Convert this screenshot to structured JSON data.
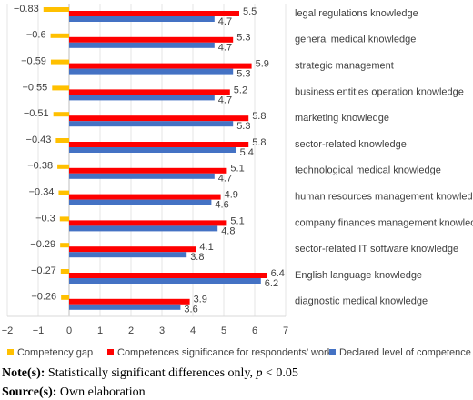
{
  "chart_data": {
    "type": "hbar",
    "categories": [
      "legal regulations knowledge",
      "general medical knowledge",
      "strategic management",
      "business entities operation knowledge",
      "marketing knowledge",
      "sector-related knowledge",
      "technological medical knowledge",
      "human resources management knowledge",
      "company finances management knowledge",
      "sector-related IT software knowledge",
      "English language knowledge",
      "diagnostic medical knowledge"
    ],
    "series": [
      {
        "name": "Competency gap",
        "color": "#ffc000",
        "values": [
          -0.83,
          -0.6,
          -0.59,
          -0.55,
          -0.51,
          -0.43,
          -0.38,
          -0.34,
          -0.3,
          -0.29,
          -0.27,
          -0.26
        ],
        "value_labels": [
          "−0.83",
          "−0.6",
          "−0.59",
          "−0.55",
          "−0.51",
          "−0.43",
          "−0.38",
          "−0.34",
          "−0.3",
          "−0.29",
          "−0.27",
          "−0.26"
        ]
      },
      {
        "name": "Competences significance for respondents’ work",
        "color": "#ff0000",
        "values": [
          5.5,
          5.3,
          5.9,
          5.2,
          5.8,
          5.8,
          5.1,
          4.9,
          5.1,
          4.1,
          6.4,
          3.9
        ]
      },
      {
        "name": "Declared level of competence",
        "color": "#4472c4",
        "values": [
          4.7,
          4.7,
          5.3,
          4.7,
          5.3,
          5.4,
          4.7,
          4.6,
          4.8,
          3.8,
          6.2,
          3.6
        ]
      }
    ],
    "xlim": [
      -2,
      7
    ],
    "xticks": [
      {
        "value": -2,
        "label": "−2"
      },
      {
        "value": -1,
        "label": "−1"
      },
      0,
      1,
      2,
      3,
      4,
      5,
      6,
      7
    ],
    "grid": true,
    "legend": "bottom"
  },
  "note": {
    "label": "Note(s):",
    "text": " Statistically significant differences only, ",
    "symbol": "p",
    "rest": " < 0.05"
  },
  "source": {
    "label": "Source(s):",
    "text": " Own elaboration"
  }
}
